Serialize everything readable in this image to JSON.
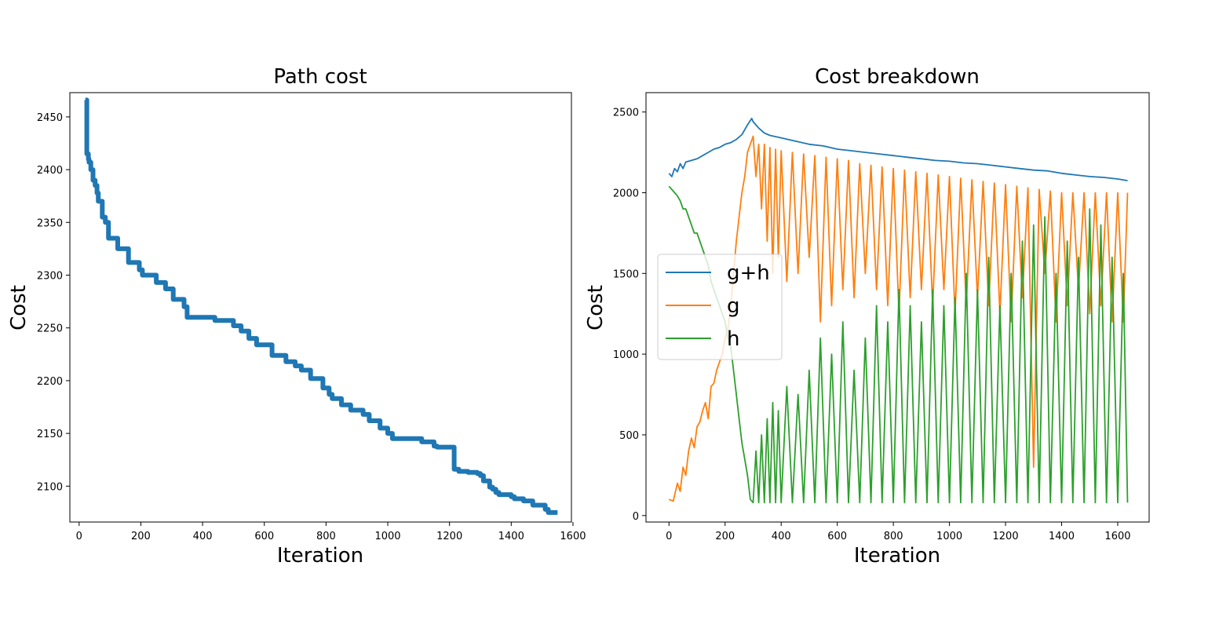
{
  "chart_data": [
    {
      "type": "line",
      "title": "Path cost",
      "xlabel": "Iteration",
      "ylabel": "Cost",
      "xlim": [
        -30,
        1595
      ],
      "ylim": [
        2066,
        2473
      ],
      "xticks": [
        0,
        200,
        400,
        600,
        800,
        1000,
        1200,
        1400,
        1600
      ],
      "yticks": [
        2100,
        2150,
        2200,
        2250,
        2300,
        2350,
        2400,
        2450
      ],
      "grid": false,
      "color": "#1f77b4",
      "series": [
        {
          "step": true,
          "x": [
            20,
            25,
            30,
            32,
            38,
            45,
            52,
            58,
            62,
            75,
            85,
            95,
            125,
            160,
            195,
            205,
            250,
            280,
            305,
            340,
            350,
            440,
            500,
            525,
            550,
            575,
            625,
            670,
            700,
            720,
            750,
            790,
            810,
            820,
            850,
            880,
            920,
            940,
            975,
            1000,
            1015,
            1040,
            1080,
            1110,
            1150,
            1160,
            1185,
            1200,
            1215,
            1230,
            1260,
            1290,
            1300,
            1310,
            1330,
            1340,
            1350,
            1360,
            1400,
            1410,
            1440,
            1470,
            1510,
            1520,
            1550
          ],
          "values": [
            2466,
            2415,
            2410,
            2407,
            2400,
            2390,
            2385,
            2378,
            2370,
            2355,
            2350,
            2335,
            2325,
            2312,
            2305,
            2300,
            2293,
            2287,
            2277,
            2270,
            2260,
            2257,
            2252,
            2247,
            2240,
            2234,
            2224,
            2218,
            2214,
            2210,
            2202,
            2193,
            2187,
            2183,
            2177,
            2172,
            2168,
            2162,
            2155,
            2150,
            2145,
            2145,
            2145,
            2142,
            2138,
            2137,
            2137,
            2137,
            2116,
            2114,
            2113,
            2112,
            2110,
            2105,
            2099,
            2097,
            2094,
            2092,
            2090,
            2088,
            2086,
            2082,
            2078,
            2075,
            2075
          ]
        }
      ]
    },
    {
      "type": "line",
      "title": "Cost breakdown",
      "xlabel": "Iteration",
      "ylabel": "Cost",
      "xlim": [
        -82,
        1712
      ],
      "ylim": [
        -40,
        2620
      ],
      "xticks": [
        0,
        200,
        400,
        600,
        800,
        1000,
        1200,
        1400,
        1600
      ],
      "yticks": [
        0,
        500,
        1000,
        1500,
        2000,
        2500
      ],
      "grid": false,
      "legend": "center-left",
      "series": [
        {
          "name": "g+h",
          "color": "#1f77b4",
          "x": [
            0,
            10,
            20,
            30,
            40,
            50,
            60,
            80,
            100,
            120,
            140,
            160,
            180,
            200,
            220,
            240,
            260,
            280,
            295,
            300,
            310,
            320,
            340,
            360,
            400,
            450,
            500,
            550,
            600,
            650,
            700,
            750,
            800,
            850,
            900,
            950,
            1000,
            1050,
            1100,
            1150,
            1200,
            1250,
            1300,
            1350,
            1400,
            1450,
            1500,
            1550,
            1600,
            1635
          ],
          "values": [
            2120,
            2100,
            2150,
            2130,
            2180,
            2150,
            2190,
            2200,
            2210,
            2230,
            2250,
            2270,
            2280,
            2300,
            2310,
            2330,
            2360,
            2420,
            2460,
            2440,
            2420,
            2400,
            2370,
            2355,
            2340,
            2320,
            2300,
            2290,
            2270,
            2260,
            2250,
            2240,
            2230,
            2220,
            2210,
            2200,
            2195,
            2185,
            2180,
            2170,
            2160,
            2150,
            2140,
            2135,
            2120,
            2110,
            2100,
            2095,
            2085,
            2075
          ]
        },
        {
          "name": "g",
          "color": "#ff7f0e",
          "x": [
            0,
            15,
            30,
            40,
            50,
            60,
            70,
            80,
            90,
            100,
            110,
            120,
            130,
            140,
            150,
            160,
            170,
            180,
            190,
            200,
            210,
            220,
            230,
            240,
            250,
            260,
            270,
            280,
            290,
            300,
            310,
            320,
            330,
            340,
            350,
            360,
            370,
            380,
            390,
            400,
            420,
            440,
            460,
            480,
            500,
            520,
            540,
            560,
            580,
            600,
            620,
            640,
            660,
            680,
            700,
            720,
            740,
            760,
            780,
            800,
            820,
            840,
            860,
            880,
            900,
            920,
            940,
            960,
            980,
            1000,
            1020,
            1040,
            1060,
            1080,
            1100,
            1120,
            1140,
            1160,
            1180,
            1200,
            1220,
            1240,
            1260,
            1280,
            1300,
            1320,
            1340,
            1360,
            1380,
            1400,
            1420,
            1440,
            1460,
            1480,
            1500,
            1520,
            1540,
            1560,
            1580,
            1600,
            1620,
            1635
          ],
          "values": [
            100,
            90,
            200,
            150,
            300,
            250,
            400,
            480,
            420,
            550,
            580,
            650,
            700,
            600,
            800,
            820,
            900,
            950,
            1000,
            1100,
            1150,
            1300,
            1500,
            1700,
            1850,
            2000,
            2100,
            2250,
            2300,
            2350,
            2100,
            2300,
            1900,
            2300,
            1700,
            2280,
            1500,
            2270,
            1600,
            2260,
            1450,
            2250,
            1500,
            2240,
            1600,
            2230,
            1200,
            2220,
            1300,
            2210,
            1400,
            2200,
            1350,
            2180,
            1500,
            2170,
            1400,
            2160,
            1300,
            2150,
            1250,
            2140,
            1350,
            2130,
            1400,
            2120,
            1300,
            2110,
            1400,
            2100,
            1250,
            2090,
            1300,
            2080,
            1350,
            2070,
            1300,
            2060,
            1250,
            2050,
            1200,
            2040,
            1350,
            2030,
            300,
            2020,
            1500,
            2010,
            1200,
            2000,
            1300,
            2000,
            1400,
            2000,
            1250,
            2000,
            1300,
            2000,
            1200,
            2000,
            1200,
            2000
          ]
        },
        {
          "name": "h",
          "color": "#2ca02c",
          "x": [
            0,
            15,
            30,
            40,
            50,
            60,
            70,
            80,
            90,
            100,
            110,
            120,
            130,
            140,
            150,
            160,
            170,
            180,
            190,
            200,
            210,
            220,
            230,
            240,
            250,
            260,
            270,
            280,
            290,
            300,
            310,
            320,
            330,
            340,
            350,
            360,
            370,
            380,
            390,
            400,
            420,
            440,
            460,
            480,
            500,
            520,
            540,
            560,
            580,
            600,
            620,
            640,
            660,
            680,
            700,
            720,
            740,
            760,
            780,
            800,
            820,
            840,
            860,
            880,
            900,
            920,
            940,
            960,
            980,
            1000,
            1020,
            1040,
            1060,
            1080,
            1100,
            1120,
            1140,
            1160,
            1180,
            1200,
            1220,
            1240,
            1260,
            1280,
            1300,
            1320,
            1340,
            1360,
            1380,
            1400,
            1420,
            1440,
            1460,
            1480,
            1500,
            1520,
            1540,
            1560,
            1580,
            1600,
            1620,
            1635
          ],
          "values": [
            2040,
            2010,
            1980,
            1950,
            1900,
            1900,
            1850,
            1800,
            1750,
            1750,
            1700,
            1650,
            1600,
            1550,
            1450,
            1400,
            1350,
            1300,
            1250,
            1200,
            1100,
            1050,
            900,
            750,
            600,
            450,
            350,
            250,
            100,
            80,
            400,
            80,
            500,
            80,
            600,
            80,
            700,
            80,
            650,
            80,
            800,
            80,
            750,
            80,
            900,
            80,
            1100,
            80,
            1000,
            80,
            1200,
            80,
            900,
            80,
            1100,
            80,
            1300,
            80,
            1200,
            80,
            1400,
            80,
            1300,
            80,
            1200,
            80,
            1400,
            80,
            1300,
            80,
            1350,
            80,
            1500,
            80,
            1400,
            80,
            1600,
            80,
            1300,
            80,
            1500,
            80,
            1700,
            80,
            1800,
            80,
            1850,
            80,
            1500,
            80,
            1700,
            80,
            1600,
            80,
            1900,
            80,
            1800,
            80,
            1600,
            80,
            1500,
            80
          ]
        }
      ]
    }
  ]
}
